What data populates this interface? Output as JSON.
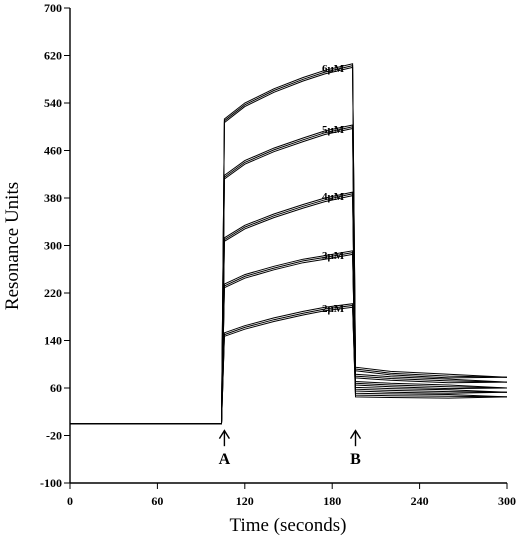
{
  "chart_data": {
    "type": "line",
    "title": "",
    "xlabel": "Time (seconds)",
    "ylabel": "Resonance Units",
    "xlim": [
      0,
      300
    ],
    "ylim": [
      -100,
      700
    ],
    "xticks": [
      "0",
      "60",
      "120",
      "180",
      "240",
      "300"
    ],
    "yticks": [
      "-100",
      "-20",
      "60",
      "140",
      "220",
      "300",
      "380",
      "460",
      "540",
      "620",
      "700"
    ],
    "grid": false,
    "legend": "none",
    "injection_start": 105,
    "injection_end": 195,
    "series": [
      {
        "name": "6μM",
        "values": [
          {
            "x": 0,
            "y": 0
          },
          {
            "x": 104,
            "y": 0
          },
          {
            "x": 106,
            "y": 510
          },
          {
            "x": 120,
            "y": 537
          },
          {
            "x": 140,
            "y": 561
          },
          {
            "x": 160,
            "y": 580
          },
          {
            "x": 175,
            "y": 592
          },
          {
            "x": 194,
            "y": 603
          },
          {
            "x": 196,
            "y": 92
          },
          {
            "x": 220,
            "y": 85
          },
          {
            "x": 260,
            "y": 80
          },
          {
            "x": 300,
            "y": 78
          }
        ]
      },
      {
        "name": "5μM",
        "values": [
          {
            "x": 0,
            "y": 0
          },
          {
            "x": 104,
            "y": 0
          },
          {
            "x": 106,
            "y": 415
          },
          {
            "x": 120,
            "y": 440
          },
          {
            "x": 140,
            "y": 461
          },
          {
            "x": 160,
            "y": 478
          },
          {
            "x": 175,
            "y": 490
          },
          {
            "x": 194,
            "y": 500
          },
          {
            "x": 196,
            "y": 80
          },
          {
            "x": 220,
            "y": 76
          },
          {
            "x": 260,
            "y": 72
          },
          {
            "x": 300,
            "y": 70
          }
        ]
      },
      {
        "name": "4μM",
        "values": [
          {
            "x": 0,
            "y": 0
          },
          {
            "x": 104,
            "y": 0
          },
          {
            "x": 106,
            "y": 310
          },
          {
            "x": 120,
            "y": 331
          },
          {
            "x": 140,
            "y": 350
          },
          {
            "x": 160,
            "y": 366
          },
          {
            "x": 175,
            "y": 377
          },
          {
            "x": 194,
            "y": 387
          },
          {
            "x": 196,
            "y": 68
          },
          {
            "x": 220,
            "y": 65
          },
          {
            "x": 260,
            "y": 62
          },
          {
            "x": 300,
            "y": 60
          }
        ]
      },
      {
        "name": "3μM",
        "values": [
          {
            "x": 0,
            "y": 0
          },
          {
            "x": 104,
            "y": 0
          },
          {
            "x": 106,
            "y": 232
          },
          {
            "x": 120,
            "y": 248
          },
          {
            "x": 140,
            "y": 262
          },
          {
            "x": 160,
            "y": 274
          },
          {
            "x": 175,
            "y": 280
          },
          {
            "x": 194,
            "y": 288
          },
          {
            "x": 196,
            "y": 58
          },
          {
            "x": 220,
            "y": 56
          },
          {
            "x": 260,
            "y": 54
          },
          {
            "x": 300,
            "y": 53
          }
        ]
      },
      {
        "name": "2μM",
        "values": [
          {
            "x": 0,
            "y": 0
          },
          {
            "x": 104,
            "y": 0
          },
          {
            "x": 106,
            "y": 150
          },
          {
            "x": 120,
            "y": 162
          },
          {
            "x": 140,
            "y": 175
          },
          {
            "x": 160,
            "y": 186
          },
          {
            "x": 175,
            "y": 193
          },
          {
            "x": 194,
            "y": 199
          },
          {
            "x": 196,
            "y": 48
          },
          {
            "x": 220,
            "y": 47
          },
          {
            "x": 260,
            "y": 46
          },
          {
            "x": 300,
            "y": 45
          }
        ]
      }
    ],
    "markers": [
      {
        "label": "A",
        "x": 106
      },
      {
        "label": "B",
        "x": 196
      }
    ]
  }
}
